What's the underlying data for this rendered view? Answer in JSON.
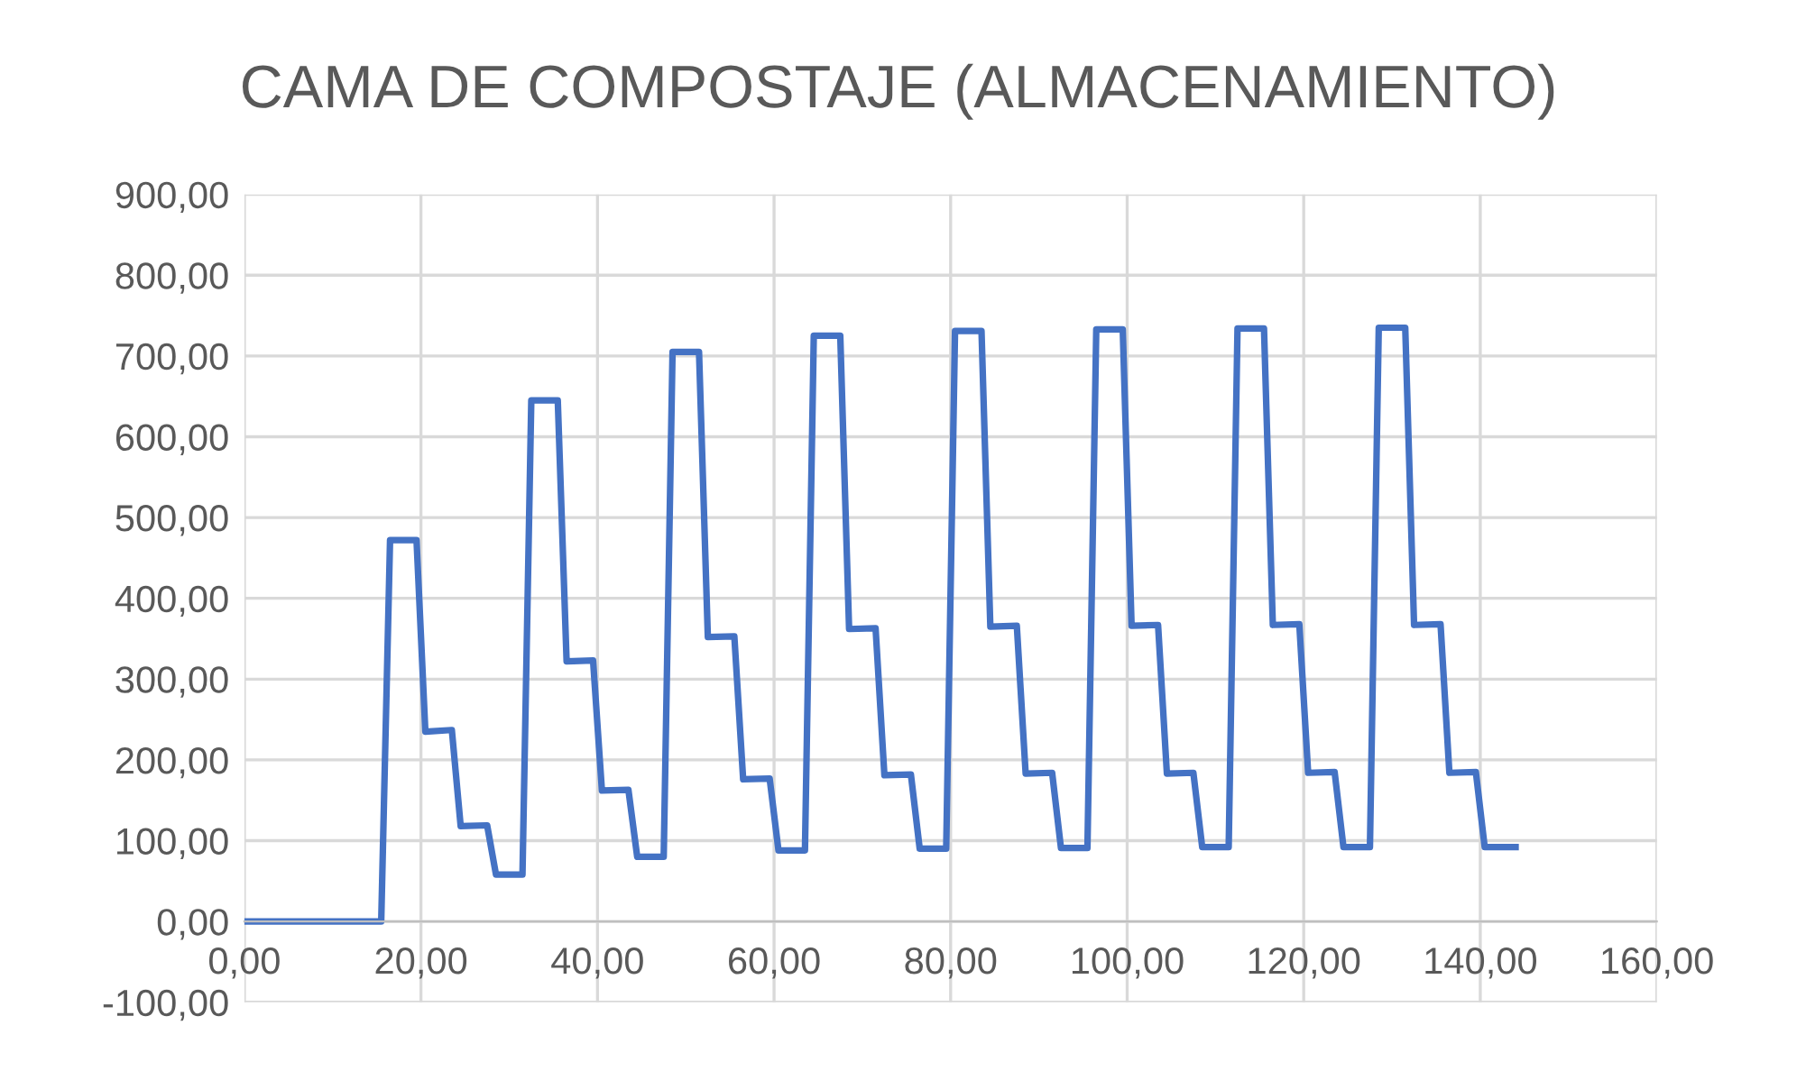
{
  "chart_data": {
    "type": "line",
    "title": "CAMA DE COMPOSTAJE (ALMACENAMIENTO)",
    "series": [
      {
        "color": "#4472c4",
        "x": [
          0,
          15.5,
          16.5,
          19.5,
          20.5,
          23.5,
          24.5,
          27.5,
          28.5,
          31.5,
          32.5,
          35.5,
          36.5,
          39.5,
          40.5,
          43.5,
          44.5,
          47.5,
          48.5,
          51.5,
          52.5,
          55.5,
          56.5,
          59.5,
          60.5,
          63.5,
          64.5,
          67.5,
          68.5,
          71.5,
          72.5,
          75.5,
          76.5,
          79.5,
          80.5,
          83.5,
          84.5,
          87.5,
          88.5,
          91.5,
          92.5,
          95.5,
          96.5,
          99.5,
          100.5,
          103.5,
          104.5,
          107.5,
          108.5,
          111.5,
          112.5,
          115.5,
          116.5,
          119.5,
          120.5,
          123.5,
          124.5,
          127.5,
          128.5,
          131.5,
          132.5,
          135.5,
          136.5,
          139.5,
          140.5,
          144
        ],
        "values": [
          0,
          0,
          472,
          472,
          235,
          237,
          118,
          119,
          58,
          58,
          645,
          645,
          322,
          323,
          162,
          163,
          80,
          80,
          705,
          705,
          352,
          353,
          176,
          177,
          88,
          88,
          725,
          725,
          362,
          363,
          181,
          182,
          90,
          90,
          731,
          731,
          365,
          366,
          183,
          184,
          91,
          91,
          733,
          733,
          366,
          367,
          183,
          184,
          92,
          92,
          734,
          734,
          367,
          368,
          184,
          185,
          92,
          92,
          735,
          735,
          367,
          368,
          184,
          185,
          92,
          92
        ]
      }
    ],
    "xlim": [
      0,
      160
    ],
    "xticks": [
      {
        "value": 0,
        "label": "0,00"
      },
      {
        "value": 20,
        "label": "20,00"
      },
      {
        "value": 40,
        "label": "40,00"
      },
      {
        "value": 60,
        "label": "60,00"
      },
      {
        "value": 80,
        "label": "80,00"
      },
      {
        "value": 100,
        "label": "100,00"
      },
      {
        "value": 120,
        "label": "120,00"
      },
      {
        "value": 140,
        "label": "140,00"
      },
      {
        "value": 160,
        "label": "160,00"
      }
    ],
    "ylim": [
      -100,
      900
    ],
    "yticks": [
      {
        "value": -100,
        "label": "-100,00"
      },
      {
        "value": 0,
        "label": "0,00"
      },
      {
        "value": 100,
        "label": "100,00"
      },
      {
        "value": 200,
        "label": "200,00"
      },
      {
        "value": 300,
        "label": "300,00"
      },
      {
        "value": 400,
        "label": "400,00"
      },
      {
        "value": 500,
        "label": "500,00"
      },
      {
        "value": 600,
        "label": "600,00"
      },
      {
        "value": 700,
        "label": "700,00"
      },
      {
        "value": 800,
        "label": "800,00"
      },
      {
        "value": 900,
        "label": "900,00"
      }
    ],
    "grid": true,
    "legend": false,
    "marker": "none",
    "line_style": "solid"
  }
}
